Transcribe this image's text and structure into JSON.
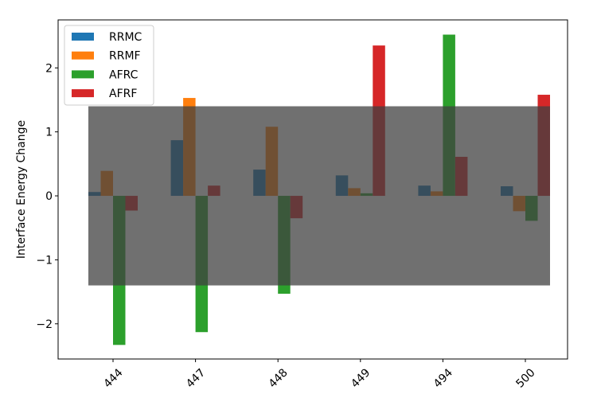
{
  "chart_data": {
    "type": "bar",
    "categories": [
      "444",
      "447",
      "448",
      "449",
      "494",
      "500"
    ],
    "series": [
      {
        "name": "RRMC",
        "color": "#1f77b4",
        "values": [
          0.06,
          0.87,
          0.41,
          0.32,
          0.16,
          0.15
        ]
      },
      {
        "name": "RRMF",
        "color": "#ff7f0e",
        "values": [
          0.39,
          1.53,
          1.08,
          0.12,
          0.07,
          -0.24
        ]
      },
      {
        "name": "AFRC",
        "color": "#2ca02c",
        "values": [
          -2.33,
          -2.13,
          -1.53,
          0.04,
          2.52,
          -0.39
        ]
      },
      {
        "name": "AFRF",
        "color": "#d62728",
        "values": [
          -0.23,
          0.16,
          -0.35,
          2.35,
          0.61,
          1.58
        ]
      }
    ],
    "ylabel": "Interface Energy Change",
    "xlabel": "",
    "title": "",
    "ylim": [
      -2.55,
      2.75
    ],
    "yticks": [
      -2,
      -1,
      0,
      1,
      2
    ],
    "ytick_labels": [
      "−2",
      "−1",
      "0",
      "1",
      "2"
    ],
    "band": {
      "y_min": -1.4,
      "y_max": 1.4,
      "color": "#404040",
      "opacity": 0.75
    },
    "legend_position": "upper-left",
    "grid": false
  }
}
